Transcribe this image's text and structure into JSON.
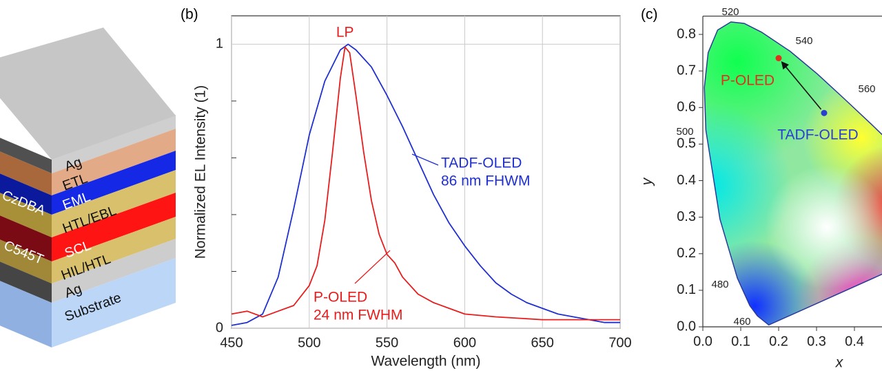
{
  "panel_a": {
    "layers": [
      "Ag",
      "ETL",
      "EML",
      "HTL/EBL",
      "SCL",
      "HIL/HTL",
      "Ag",
      "Substrate"
    ],
    "dopants": [
      "CzDBA",
      "C545T"
    ]
  },
  "chart_data": [
    {
      "type": "line",
      "panel_label": "(b)",
      "peak_label": "LP",
      "x_label": "Wavelength (nm)",
      "y_label": "Normalized EL Intensity (1)",
      "xlim": [
        450,
        700
      ],
      "xticks": [
        450,
        500,
        550,
        600,
        650,
        700
      ],
      "ylim": [
        0,
        1.1
      ],
      "yticks": [
        0,
        1
      ],
      "yminor_ticks": [
        0.2,
        0.4,
        0.6,
        0.8
      ],
      "grid": true,
      "series": [
        {
          "name": "TADF-OLED",
          "fwhm_label": "86 nm FHWM",
          "color": "#1f2fd0",
          "x": [
            450,
            460,
            470,
            480,
            490,
            500,
            510,
            520,
            525,
            530,
            540,
            550,
            560,
            570,
            580,
            590,
            600,
            610,
            620,
            630,
            640,
            650,
            660,
            670,
            680,
            690,
            700
          ],
          "values": [
            0.01,
            0.02,
            0.05,
            0.18,
            0.42,
            0.68,
            0.87,
            0.98,
            1.0,
            0.98,
            0.92,
            0.82,
            0.71,
            0.59,
            0.47,
            0.37,
            0.29,
            0.22,
            0.16,
            0.12,
            0.09,
            0.07,
            0.05,
            0.04,
            0.03,
            0.02,
            0.02
          ]
        },
        {
          "name": "P-OLED",
          "fwhm_label": "24 nm FWHM",
          "color": "#e81c1c",
          "x": [
            450,
            460,
            470,
            480,
            490,
            500,
            505,
            510,
            515,
            520,
            523,
            526,
            530,
            535,
            540,
            545,
            550,
            555,
            560,
            570,
            580,
            590,
            600,
            620,
            650,
            680,
            700
          ],
          "values": [
            0.05,
            0.06,
            0.04,
            0.06,
            0.08,
            0.15,
            0.22,
            0.38,
            0.62,
            0.88,
            0.99,
            0.97,
            0.82,
            0.62,
            0.45,
            0.33,
            0.26,
            0.23,
            0.18,
            0.12,
            0.09,
            0.07,
            0.05,
            0.04,
            0.03,
            0.03,
            0.03
          ]
        }
      ]
    },
    {
      "type": "scatter",
      "panel_label": "(c)",
      "x_label": "x",
      "y_label": "y",
      "xlim": [
        0,
        0.47
      ],
      "xticks": [
        {
          "value": 0,
          "label": "0.0"
        },
        0.1,
        0.2,
        0.3,
        0.4
      ],
      "ylim": [
        0,
        0.85
      ],
      "yticks": [
        {
          "value": 0,
          "label": "0.0"
        },
        0.1,
        0.2,
        0.3,
        0.4,
        0.5,
        0.6,
        0.7,
        0.8
      ],
      "locus_labels": [
        460,
        480,
        500,
        520,
        540,
        560
      ],
      "series": [
        {
          "name": "P-OLED",
          "color": "#e0301e",
          "x": [
            0.2
          ],
          "values": [
            0.735
          ]
        },
        {
          "name": "TADF-OLED",
          "color": "#2a3fd0",
          "x": [
            0.32
          ],
          "values": [
            0.585
          ]
        }
      ]
    }
  ]
}
